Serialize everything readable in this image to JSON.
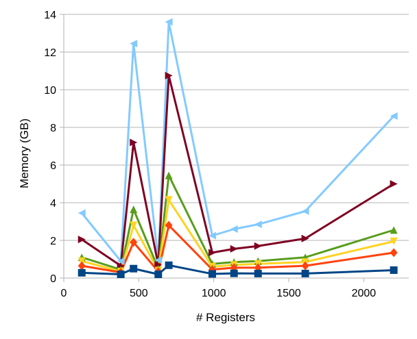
{
  "chart_data": {
    "type": "line",
    "title": "",
    "xlabel": "# Registers",
    "ylabel": "Memory (GB)",
    "xlim": [
      0,
      2300
    ],
    "ylim": [
      0,
      14
    ],
    "xticks": [
      0,
      500,
      1000,
      1500,
      2000
    ],
    "yticks": [
      0,
      2,
      4,
      6,
      8,
      10,
      12,
      14
    ],
    "grid": "horizontal",
    "legend": "none",
    "x": [
      120,
      380,
      465,
      630,
      700,
      990,
      1135,
      1295,
      1610,
      2200
    ],
    "series": [
      {
        "color": "#004586",
        "marker": "square",
        "values": [
          0.28,
          0.2,
          0.5,
          0.2,
          0.68,
          0.22,
          0.25,
          0.24,
          0.24,
          0.42
        ]
      },
      {
        "color": "#ff420e",
        "marker": "diamond",
        "values": [
          0.65,
          0.3,
          1.9,
          0.35,
          2.8,
          0.45,
          0.55,
          0.55,
          0.65,
          1.35
        ]
      },
      {
        "color": "#ffd320",
        "marker": "triangle-down",
        "values": [
          0.9,
          0.35,
          2.8,
          0.4,
          4.15,
          0.6,
          0.7,
          0.75,
          0.85,
          1.95
        ]
      },
      {
        "color": "#579d1c",
        "marker": "triangle-up",
        "values": [
          1.1,
          0.45,
          3.65,
          0.5,
          5.45,
          0.75,
          0.85,
          0.9,
          1.1,
          2.55
        ]
      },
      {
        "color": "#7e0021",
        "marker": "triangle-right",
        "values": [
          2.05,
          0.65,
          7.2,
          0.7,
          10.75,
          1.35,
          1.55,
          1.7,
          2.1,
          5.0
        ]
      },
      {
        "color": "#83caff",
        "marker": "triangle-left",
        "values": [
          3.45,
          0.9,
          12.45,
          0.95,
          13.6,
          2.25,
          2.6,
          2.85,
          3.55,
          8.6
        ]
      }
    ]
  }
}
